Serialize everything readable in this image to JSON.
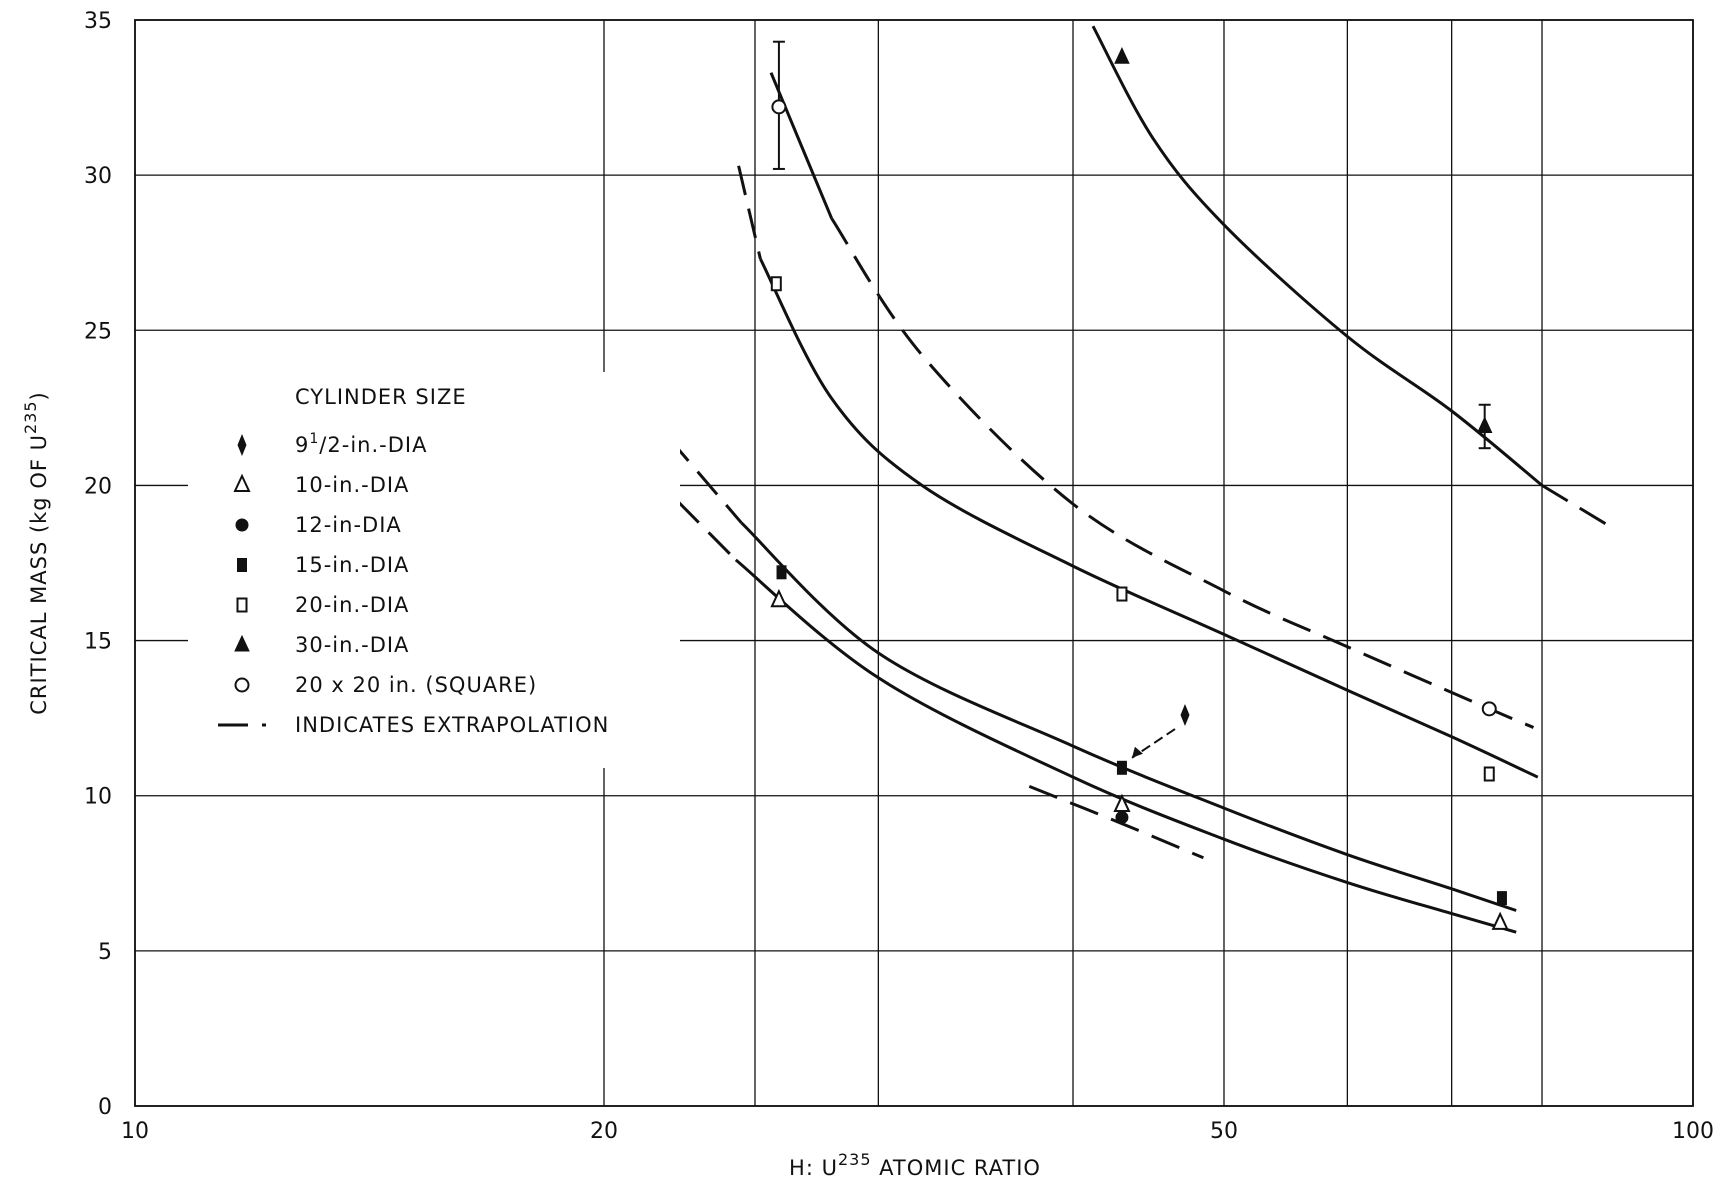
{
  "chart_data": {
    "type": "line",
    "title": "",
    "xlabel": "H: U<sup>235</sup> ATOMIC RATIO",
    "xlabel_main": "H: U",
    "xlabel_sup": "235",
    "xlabel_rest": " ATOMIC RATIO",
    "ylabel_main": "CRITICAL MASS (kg OF U",
    "ylabel_sup": "235",
    "ylabel_end": ")",
    "x_scale": "log",
    "xlim": [
      10,
      100
    ],
    "ylim": [
      0,
      35
    ],
    "x_grid": [
      10,
      20,
      25,
      30,
      40,
      50,
      60,
      70,
      80,
      100
    ],
    "x_ticks": [
      {
        "value": 10,
        "label": "10"
      },
      {
        "value": 20,
        "label": "20"
      },
      {
        "value": 50,
        "label": "50"
      },
      {
        "value": 100,
        "label": "100"
      }
    ],
    "y_ticks": [
      {
        "value": 0,
        "label": "0"
      },
      {
        "value": 5,
        "label": "5"
      },
      {
        "value": 10,
        "label": "10"
      },
      {
        "value": 15,
        "label": "15"
      },
      {
        "value": 20,
        "label": "20"
      },
      {
        "value": 25,
        "label": "25"
      },
      {
        "value": 30,
        "label": "30"
      },
      {
        "value": 35,
        "label": "35"
      }
    ],
    "grid": true,
    "legend_title": "CYLINDER SIZE",
    "legend": [
      {
        "key": "d95",
        "marker": "thin-diamond",
        "label_pre": "9",
        "label_frac_num": "1",
        "label_frac_den": "2",
        "label_post": "-in.-DIA"
      },
      {
        "key": "d10",
        "marker": "open-triangle",
        "label": "10-in.-DIA"
      },
      {
        "key": "d12",
        "marker": "filled-circle",
        "label": "12-in-DIA"
      },
      {
        "key": "d15",
        "marker": "filled-square",
        "label": "15-in.-DIA"
      },
      {
        "key": "d20",
        "marker": "open-square",
        "label": "20-in.-DIA"
      },
      {
        "key": "d30",
        "marker": "filled-triangle",
        "label": "30-in.-DIA"
      },
      {
        "key": "sq",
        "marker": "open-circle",
        "label": "20 x 20 in. (SQUARE)"
      },
      {
        "key": "extrap",
        "marker": "dashed-line",
        "label": "INDICATES EXTRAPOLATION"
      }
    ],
    "series": [
      {
        "key": "d95",
        "marker": "thin-diamond",
        "points": [
          {
            "x": 47.2,
            "y": 12.6
          }
        ]
      },
      {
        "key": "d10",
        "marker": "open-triangle",
        "points": [
          {
            "x": 25.9,
            "y": 16.3
          },
          {
            "x": 43.0,
            "y": 9.7
          },
          {
            "x": 75.2,
            "y": 5.9
          }
        ]
      },
      {
        "key": "d12",
        "marker": "filled-circle",
        "points": [
          {
            "x": 43.0,
            "y": 9.3
          }
        ]
      },
      {
        "key": "d15",
        "marker": "filled-square",
        "points": [
          {
            "x": 26.0,
            "y": 17.2
          },
          {
            "x": 43.0,
            "y": 10.9
          },
          {
            "x": 75.4,
            "y": 6.7
          }
        ]
      },
      {
        "key": "d20",
        "marker": "open-square",
        "points": [
          {
            "x": 25.8,
            "y": 26.5
          },
          {
            "x": 43.0,
            "y": 16.5
          },
          {
            "x": 74.0,
            "y": 10.7
          }
        ]
      },
      {
        "key": "d30",
        "marker": "filled-triangle",
        "points": [
          {
            "x": 43.0,
            "y": 33.8,
            "label": "▲"
          },
          {
            "x": 73.5,
            "y": 21.9,
            "error": [
              21.2,
              22.6
            ]
          }
        ]
      },
      {
        "key": "sq",
        "marker": "open-circle",
        "points": [
          {
            "x": 25.9,
            "y": 32.2,
            "error": [
              30.2,
              34.3
            ]
          },
          {
            "x": 74.0,
            "y": 12.8
          }
        ]
      }
    ],
    "curves": [
      {
        "name": "30-in.-DIA curve",
        "solid": [
          [
            41.2,
            34.8
          ],
          [
            45.0,
            31.2
          ],
          [
            50.0,
            28.4
          ],
          [
            60.0,
            24.8
          ],
          [
            70.0,
            22.4
          ],
          [
            80.0,
            20.0
          ]
        ],
        "dashed": [
          [
            80.0,
            20.0
          ],
          [
            89.0,
            18.6
          ]
        ]
      },
      {
        "name": "20 x 20 in. (SQUARE) curve",
        "solid": [
          [
            25.6,
            33.3
          ],
          [
            28.0,
            28.6
          ]
        ],
        "dashed": [
          [
            28.0,
            28.6
          ],
          [
            32.0,
            24.2
          ],
          [
            40.0,
            19.4
          ],
          [
            50.0,
            16.6
          ],
          [
            60.0,
            14.8
          ],
          [
            74.0,
            12.8
          ],
          [
            79.0,
            12.2
          ]
        ]
      },
      {
        "name": "20-in.-DIA curve",
        "solid": [
          [
            25.2,
            27.3
          ],
          [
            28.0,
            22.8
          ],
          [
            32.0,
            20.0
          ],
          [
            40.0,
            17.4
          ],
          [
            50.0,
            15.2
          ],
          [
            60.0,
            13.4
          ],
          [
            70.0,
            11.9
          ],
          [
            79.5,
            10.6
          ]
        ],
        "dashed": [
          [
            24.4,
            30.3
          ],
          [
            25.2,
            27.3
          ]
        ]
      },
      {
        "name": "15-in.-DIA curve",
        "solid": [
          [
            24.5,
            18.8
          ],
          [
            30.0,
            14.6
          ],
          [
            40.0,
            11.6
          ],
          [
            50.0,
            9.6
          ],
          [
            60.0,
            8.1
          ],
          [
            70.0,
            7.0
          ],
          [
            77.0,
            6.3
          ]
        ],
        "dashed": [
          [
            21.1,
            22.6
          ],
          [
            24.5,
            18.8
          ]
        ]
      },
      {
        "name": "10-in.-DIA curve",
        "solid": [
          [
            24.3,
            17.6
          ],
          [
            30.0,
            13.8
          ],
          [
            40.0,
            10.6
          ],
          [
            50.0,
            8.6
          ],
          [
            60.0,
            7.2
          ],
          [
            70.0,
            6.2
          ],
          [
            77.0,
            5.6
          ]
        ],
        "dashed": [
          [
            21.3,
            20.5
          ],
          [
            24.3,
            17.6
          ]
        ]
      },
      {
        "name": "12-in.-DIA curve",
        "solid": [],
        "dashed": [
          [
            37.5,
            10.3
          ],
          [
            43.0,
            9.1
          ],
          [
            48.5,
            8.0
          ]
        ]
      }
    ]
  }
}
